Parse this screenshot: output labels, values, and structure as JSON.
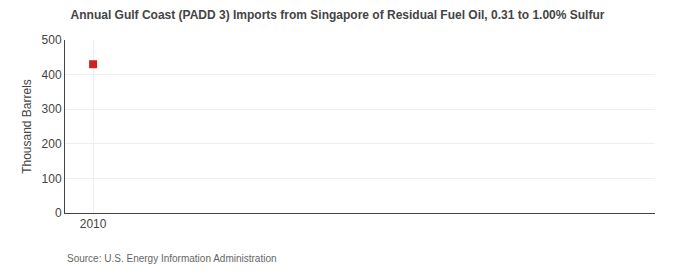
{
  "chart_data": {
    "type": "scatter",
    "title": "Annual Gulf Coast (PADD 3) Imports from Singapore of Residual Fuel Oil, 0.31 to 1.00% Sulfur",
    "ylabel": "Thousand Barrels",
    "annotations": [
      "Source: U.S. Energy Information Administration"
    ],
    "x": [
      2010
    ],
    "values": [
      430
    ],
    "color": "#cc2222",
    "marker": "square",
    "xlim": [
      2009.4,
      2022
    ],
    "xticks": [
      2010
    ],
    "ylim": [
      0,
      500
    ],
    "yticks": [
      0,
      100,
      200,
      300,
      400,
      500
    ],
    "grid": true
  }
}
